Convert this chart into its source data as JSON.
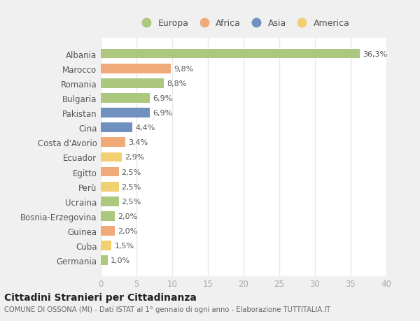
{
  "countries": [
    "Albania",
    "Marocco",
    "Romania",
    "Bulgaria",
    "Pakistan",
    "Cina",
    "Costa d'Avorio",
    "Ecuador",
    "Egitto",
    "Perù",
    "Ucraina",
    "Bosnia-Erzegovina",
    "Guinea",
    "Cuba",
    "Germania"
  ],
  "values": [
    36.3,
    9.8,
    8.8,
    6.9,
    6.9,
    4.4,
    3.4,
    2.9,
    2.5,
    2.5,
    2.5,
    2.0,
    2.0,
    1.5,
    1.0
  ],
  "labels": [
    "36,3%",
    "9,8%",
    "8,8%",
    "6,9%",
    "6,9%",
    "4,4%",
    "3,4%",
    "2,9%",
    "2,5%",
    "2,5%",
    "2,5%",
    "2,0%",
    "2,0%",
    "1,5%",
    "1,0%"
  ],
  "continents": [
    "Europa",
    "Africa",
    "Europa",
    "Europa",
    "Asia",
    "Asia",
    "Africa",
    "America",
    "Africa",
    "America",
    "Europa",
    "Europa",
    "Africa",
    "America",
    "Europa"
  ],
  "colors": {
    "Europa": "#abc87e",
    "Africa": "#f0aa7a",
    "Asia": "#7090c0",
    "America": "#f0d070"
  },
  "xlim": [
    0,
    40
  ],
  "xticks": [
    0,
    5,
    10,
    15,
    20,
    25,
    30,
    35,
    40
  ],
  "title": "Cittadini Stranieri per Cittadinanza",
  "subtitle": "COMUNE DI OSSONA (MI) - Dati ISTAT al 1° gennaio di ogni anno - Elaborazione TUTTITALIA.IT",
  "figure_bg": "#f0f0f0",
  "axes_bg": "#ffffff",
  "grid_color": "#e8e8e8",
  "label_text_color": "#555555",
  "value_text_color": "#555555",
  "tick_color": "#aaaaaa",
  "title_color": "#222222",
  "subtitle_color": "#666666"
}
